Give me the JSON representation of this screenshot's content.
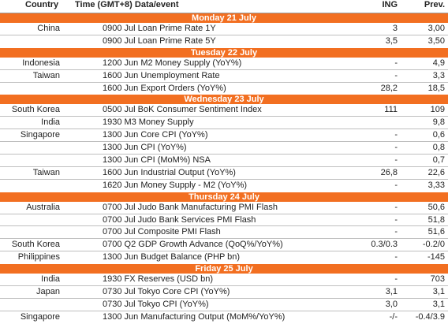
{
  "header": {
    "country": "Country",
    "event": "Time (GMT+8) Data/event",
    "ing": "ING",
    "prev": "Prev."
  },
  "days": [
    {
      "label": "Monday 21 July",
      "rows": [
        {
          "country": "China",
          "event": "0900 Jul Loan Prime Rate 1Y",
          "ing": "3",
          "prev": "3,00"
        },
        {
          "country": "",
          "event": "0900 Jul Loan Prime Rate 5Y",
          "ing": "3,5",
          "prev": "3,50"
        }
      ]
    },
    {
      "label": "Tuesday 22 July",
      "rows": [
        {
          "country": "Indonesia",
          "event": "1200 Jun M2 Money Supply (YoY%)",
          "ing": "-",
          "prev": "4,9"
        },
        {
          "country": "Taiwan",
          "event": "1600 Jun Unemployment Rate",
          "ing": "-",
          "prev": "3,3"
        },
        {
          "country": "",
          "event": "1600 Jun Export Orders (YoY%)",
          "ing": "28,2",
          "prev": "18,5"
        }
      ]
    },
    {
      "label": "Wednesday 23 July",
      "rows": [
        {
          "country": "South Korea",
          "event": "0500 Jul BoK Consumer Sentiment Index",
          "ing": "111",
          "prev": "109"
        },
        {
          "country": "India",
          "event": "1930 M3 Money Supply",
          "ing": "",
          "prev": "9,8"
        },
        {
          "country": "Singapore",
          "event": "1300 Jun Core CPI (YoY%)",
          "ing": "-",
          "prev": "0,6"
        },
        {
          "country": "",
          "event": "1300 Jun CPI (YoY%)",
          "ing": "-",
          "prev": "0,8"
        },
        {
          "country": "",
          "event": "1300 Jun CPI (MoM%) NSA",
          "ing": "-",
          "prev": "0,7"
        },
        {
          "country": "Taiwan",
          "event": "1600 Jun Industrial Output (YoY%)",
          "ing": "26,8",
          "prev": "22,6"
        },
        {
          "country": "",
          "event": "1620 Jun Money Supply - M2 (YoY%)",
          "ing": "-",
          "prev": "3,33"
        }
      ]
    },
    {
      "label": "Thursday 24 July",
      "rows": [
        {
          "country": "Australia",
          "event": "0700 Jul Judo Bank Manufacturing PMI Flash",
          "ing": "-",
          "prev": "50,6"
        },
        {
          "country": "",
          "event": "0700 Jul Judo Bank Services PMI Flash",
          "ing": "-",
          "prev": "51,8"
        },
        {
          "country": "",
          "event": "0700 Jul Composite PMI Flash",
          "ing": "-",
          "prev": "51,6"
        },
        {
          "country": "South Korea",
          "event": "0700 Q2 GDP Growth Advance (QoQ%/YoY%)",
          "ing": "0.3/0.3",
          "prev": "-0.2/0"
        },
        {
          "country": "Philippines",
          "event": "1300 Jun Budget Balance (PHP bn)",
          "ing": "-",
          "prev": "-145"
        }
      ]
    },
    {
      "label": "Friday 25 July",
      "rows": [
        {
          "country": "India",
          "event": "1930 FX Reserves (USD bn)",
          "ing": "-",
          "prev": "703"
        },
        {
          "country": "Japan",
          "event": "0730 Jul Tokyo Core CPI (YoY%)",
          "ing": "3,1",
          "prev": "3,1"
        },
        {
          "country": "",
          "event": "0730 Jul Tokyo CPI (YoY%)",
          "ing": "3,0",
          "prev": "3,1"
        },
        {
          "country": "Singapore",
          "event": "1300 Jun Manufacturing Output (MoM%/YoY%)",
          "ing": "-/-",
          "prev": "-0.4/3.9"
        }
      ]
    }
  ]
}
